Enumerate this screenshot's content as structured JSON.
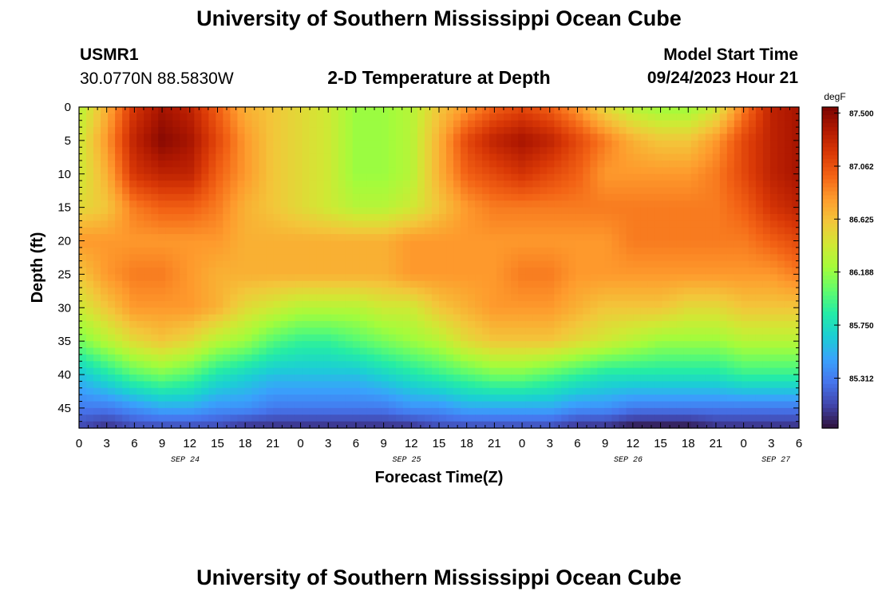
{
  "header": {
    "title": "University of Southern Mississippi Ocean Cube",
    "station": "USMR1",
    "location": "30.0770N  88.5830W",
    "model_start_label": "Model Start Time",
    "model_start_value": "09/24/2023 Hour 21",
    "footer_title": "University of Southern Mississippi Ocean Cube"
  },
  "colors": {
    "colormap": [
      "#30123b",
      "#4145ab",
      "#4675ed",
      "#39a2fc",
      "#1bcfd4",
      "#24eca6",
      "#61fc6c",
      "#a4fc3b",
      "#d1e834",
      "#f3c63a",
      "#fe9b2d",
      "#f36315",
      "#d93806",
      "#b11901",
      "#7a0402"
    ]
  },
  "chart_data": {
    "type": "heatmap",
    "title": "2-D Temperature at Depth",
    "xlabel": "Forecast Time(Z)",
    "ylabel": "Depth (ft)",
    "colorbar_unit": "degF",
    "value_range": [
      84.9,
      87.55
    ],
    "x_range_hours": [
      0,
      78
    ],
    "y_range": [
      0,
      48
    ],
    "x_tick_labels": [
      "0",
      "3",
      "6",
      "9",
      "12",
      "15",
      "18",
      "21",
      "0",
      "3",
      "6",
      "9",
      "12",
      "15",
      "18",
      "21",
      "0",
      "3",
      "6",
      "9",
      "12",
      "15",
      "18",
      "21",
      "0",
      "3",
      "6"
    ],
    "x_date_labels": [
      {
        "label": "SEP 24",
        "at_hour": 11.5
      },
      {
        "label": "SEP 25",
        "at_hour": 35.5
      },
      {
        "label": "SEP 26",
        "at_hour": 59.5
      },
      {
        "label": "SEP 27",
        "at_hour": 75.5
      }
    ],
    "y_ticks": [
      0,
      5,
      10,
      15,
      20,
      25,
      30,
      35,
      40,
      45
    ],
    "colorbar_ticks": [
      87.5,
      87.062,
      86.625,
      86.188,
      85.75,
      85.312
    ],
    "colorbar_tick_labels": [
      "87.500",
      "87.062",
      "86.625",
      "86.188",
      "85.750",
      "85.312"
    ],
    "depths": [
      0,
      5,
      10,
      15,
      20,
      25,
      30,
      35,
      40,
      45,
      48
    ],
    "times": [
      0,
      3,
      6,
      9,
      12,
      15,
      18,
      21,
      24,
      27,
      30,
      33,
      36,
      39,
      42,
      45,
      48,
      51,
      54,
      57,
      60,
      63,
      66,
      69,
      72,
      75,
      78
    ],
    "values": [
      [
        86.3,
        86.7,
        87.2,
        87.4,
        87.3,
        87.0,
        86.7,
        86.6,
        86.5,
        86.4,
        86.2,
        86.2,
        86.3,
        86.6,
        86.8,
        87.0,
        87.1,
        87.0,
        86.8,
        86.5,
        86.3,
        86.2,
        86.2,
        86.4,
        86.9,
        87.3,
        87.4
      ],
      [
        86.4,
        86.8,
        87.3,
        87.5,
        87.4,
        87.1,
        86.8,
        86.6,
        86.5,
        86.4,
        86.2,
        86.2,
        86.3,
        86.7,
        87.1,
        87.3,
        87.4,
        87.3,
        87.1,
        86.9,
        86.7,
        86.6,
        86.6,
        86.8,
        87.1,
        87.3,
        87.4
      ],
      [
        86.4,
        86.7,
        87.2,
        87.3,
        87.3,
        87.0,
        86.8,
        86.6,
        86.5,
        86.4,
        86.2,
        86.2,
        86.3,
        86.7,
        87.0,
        87.1,
        87.2,
        87.1,
        87.0,
        86.8,
        86.8,
        86.8,
        86.8,
        86.9,
        87.1,
        87.3,
        87.4
      ],
      [
        86.5,
        86.6,
        86.9,
        87.0,
        87.0,
        86.9,
        86.7,
        86.6,
        86.5,
        86.4,
        86.3,
        86.3,
        86.4,
        86.6,
        86.8,
        86.9,
        86.9,
        86.9,
        86.9,
        86.9,
        86.9,
        86.9,
        86.9,
        86.9,
        87.0,
        87.2,
        87.3
      ],
      [
        86.8,
        86.8,
        86.8,
        86.8,
        86.8,
        86.8,
        86.7,
        86.7,
        86.7,
        86.7,
        86.7,
        86.7,
        86.8,
        86.8,
        86.8,
        86.8,
        86.8,
        86.8,
        86.8,
        86.8,
        86.9,
        86.9,
        86.9,
        86.9,
        86.9,
        87.0,
        87.1
      ],
      [
        86.6,
        86.8,
        86.9,
        86.9,
        86.8,
        86.7,
        86.7,
        86.7,
        86.7,
        86.7,
        86.7,
        86.7,
        86.8,
        86.8,
        86.8,
        86.8,
        86.9,
        86.9,
        86.8,
        86.8,
        86.8,
        86.8,
        86.8,
        86.8,
        86.8,
        86.8,
        86.9
      ],
      [
        86.4,
        86.6,
        86.8,
        86.8,
        86.8,
        86.7,
        86.5,
        86.4,
        86.3,
        86.3,
        86.3,
        86.4,
        86.4,
        86.6,
        86.7,
        86.8,
        86.8,
        86.8,
        86.7,
        86.6,
        86.6,
        86.6,
        86.5,
        86.5,
        86.6,
        86.6,
        86.6
      ],
      [
        86.1,
        86.3,
        86.5,
        86.6,
        86.5,
        86.3,
        86.2,
        86.0,
        85.9,
        85.9,
        86.0,
        86.1,
        86.2,
        86.3,
        86.5,
        86.6,
        86.6,
        86.6,
        86.5,
        86.4,
        86.3,
        86.2,
        86.2,
        86.2,
        86.3,
        86.3,
        86.3
      ],
      [
        85.6,
        85.8,
        86.0,
        86.1,
        86.0,
        85.8,
        85.7,
        85.6,
        85.6,
        85.6,
        85.6,
        85.7,
        85.8,
        85.9,
        86.0,
        86.1,
        86.1,
        86.0,
        85.9,
        85.8,
        85.8,
        85.8,
        85.8,
        85.8,
        85.9,
        85.9,
        85.9
      ],
      [
        85.3,
        85.3,
        85.4,
        85.5,
        85.5,
        85.4,
        85.4,
        85.3,
        85.3,
        85.3,
        85.3,
        85.3,
        85.4,
        85.4,
        85.5,
        85.5,
        85.5,
        85.5,
        85.4,
        85.4,
        85.3,
        85.3,
        85.3,
        85.3,
        85.3,
        85.3,
        85.3
      ],
      [
        85.1,
        85.0,
        85.1,
        85.1,
        85.1,
        85.1,
        85.0,
        85.0,
        85.0,
        85.0,
        85.0,
        85.0,
        85.0,
        85.1,
        85.1,
        85.1,
        85.1,
        85.1,
        85.0,
        85.0,
        84.9,
        84.9,
        84.9,
        85.0,
        85.0,
        85.0,
        85.0
      ]
    ]
  }
}
